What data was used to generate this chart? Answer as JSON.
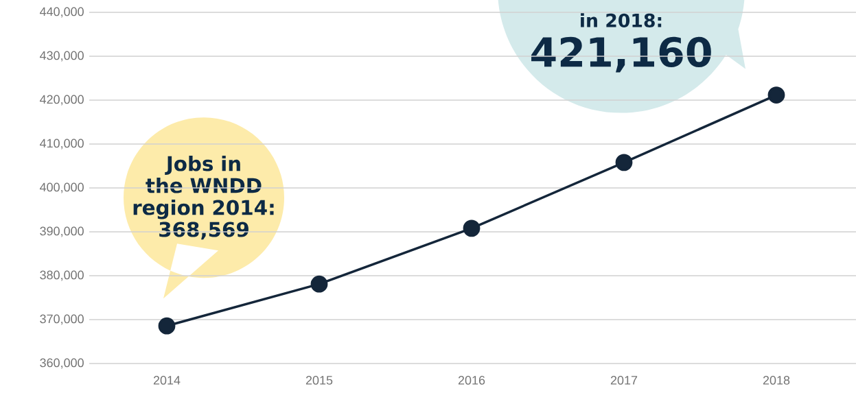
{
  "chart_data": {
    "type": "line",
    "categories": [
      "2014",
      "2015",
      "2016",
      "2017",
      "2018"
    ],
    "series": [
      {
        "color": "#14263a",
        "values": [
          368569,
          378100,
          390800,
          405800,
          421160
        ]
      }
    ],
    "ylim": [
      360000,
      440000
    ],
    "yticks": [
      {
        "value": 360000,
        "label": "360,000"
      },
      {
        "value": 370000,
        "label": "370,000"
      },
      {
        "value": 380000,
        "label": "380,000"
      },
      {
        "value": 390000,
        "label": "390,000"
      },
      {
        "value": 400000,
        "label": "400,000"
      },
      {
        "value": 410000,
        "label": "410,000"
      },
      {
        "value": 420000,
        "label": "420,000"
      },
      {
        "value": 430000,
        "label": "430,000"
      },
      {
        "value": 440000,
        "label": "440,000"
      }
    ],
    "grid": "y",
    "marker": "circle",
    "line_style": "solid",
    "annotations": [
      "Jobs in the WNDD region 2014: 368,569",
      "in 2018:",
      {
        "text": "421,160",
        "x": "2018",
        "y": 421160
      }
    ]
  }
}
